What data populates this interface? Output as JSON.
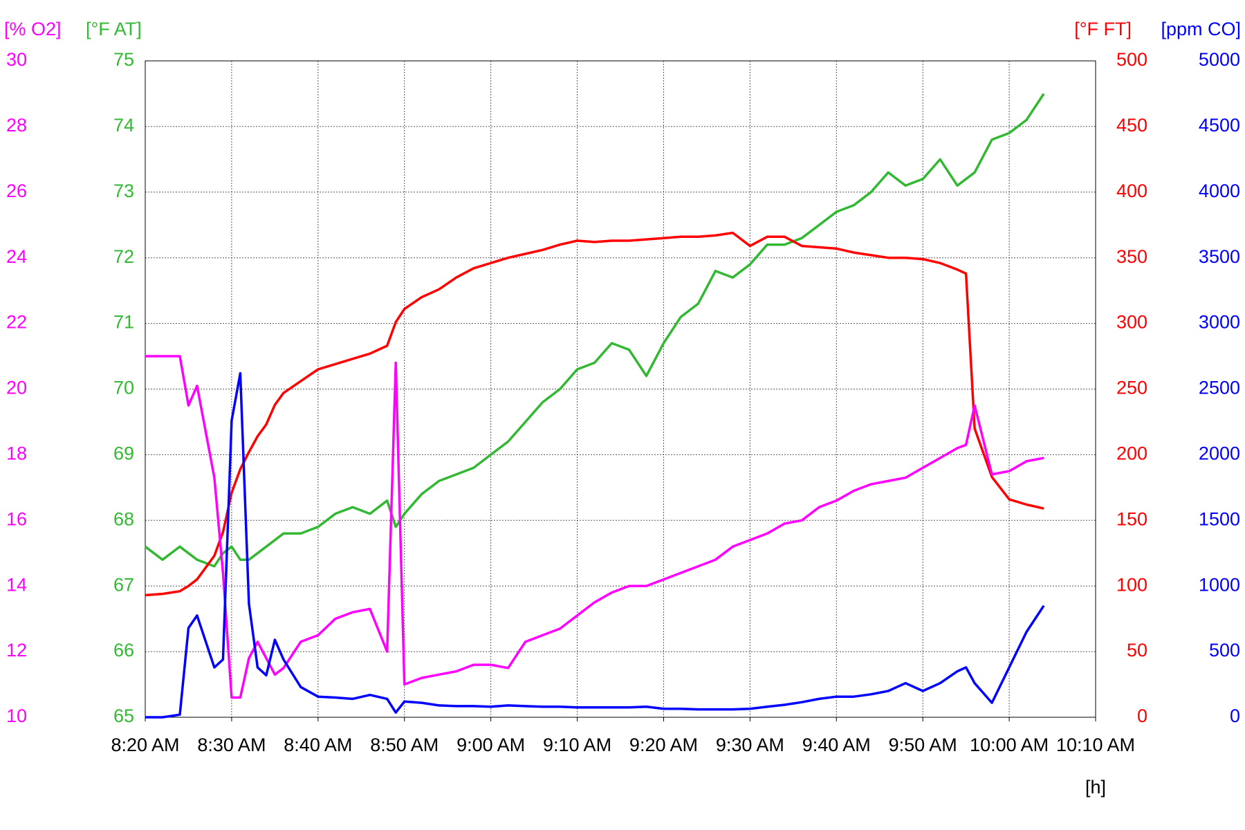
{
  "chart_data": {
    "type": "line",
    "x": [
      "8:20 AM",
      "8:22 AM",
      "8:24 AM",
      "8:25 AM",
      "8:26 AM",
      "8:28 AM",
      "8:29 AM",
      "8:30 AM",
      "8:31 AM",
      "8:32 AM",
      "8:33 AM",
      "8:34 AM",
      "8:35 AM",
      "8:36 AM",
      "8:38 AM",
      "8:40 AM",
      "8:42 AM",
      "8:44 AM",
      "8:46 AM",
      "8:48 AM",
      "8:49 AM",
      "8:50 AM",
      "8:52 AM",
      "8:54 AM",
      "8:56 AM",
      "8:58 AM",
      "9:00 AM",
      "9:02 AM",
      "9:04 AM",
      "9:06 AM",
      "9:08 AM",
      "9:10 AM",
      "9:12 AM",
      "9:14 AM",
      "9:16 AM",
      "9:18 AM",
      "9:20 AM",
      "9:22 AM",
      "9:24 AM",
      "9:26 AM",
      "9:28 AM",
      "9:30 AM",
      "9:32 AM",
      "9:34 AM",
      "9:36 AM",
      "9:38 AM",
      "9:40 AM",
      "9:42 AM",
      "9:44 AM",
      "9:46 AM",
      "9:48 AM",
      "9:50 AM",
      "9:52 AM",
      "9:54 AM",
      "9:55 AM",
      "9:56 AM",
      "9:58 AM",
      "10:00 AM",
      "10:02 AM",
      "10:04 AM"
    ],
    "xlim": [
      "8:20 AM",
      "10:10 AM"
    ],
    "xticks": [
      "8:20 AM",
      "8:30 AM",
      "8:40 AM",
      "8:50 AM",
      "9:00 AM",
      "9:10 AM",
      "9:20 AM",
      "9:30 AM",
      "9:40 AM",
      "9:50 AM",
      "10:00 AM",
      "10:10 AM"
    ],
    "x_label": "[h]",
    "grid": true,
    "axes": [
      {
        "label": "[% O2]",
        "color": "#ff00ff",
        "side": "left",
        "lim": [
          10,
          30
        ],
        "ticks": [
          10,
          12,
          14,
          16,
          18,
          20,
          22,
          24,
          26,
          28,
          30
        ]
      },
      {
        "label": "[°F AT]",
        "color": "#33b833",
        "side": "left",
        "lim": [
          65,
          75
        ],
        "ticks": [
          65,
          66,
          67,
          68,
          69,
          70,
          71,
          72,
          73,
          74,
          75
        ]
      },
      {
        "label": "[°F FT]",
        "color": "#ff0000",
        "side": "right",
        "lim": [
          0,
          500
        ],
        "ticks": [
          0,
          50,
          100,
          150,
          200,
          250,
          300,
          350,
          400,
          450,
          500
        ]
      },
      {
        "label": "[ppm CO]",
        "color": "#0000ff",
        "side": "right",
        "lim": [
          0,
          5000
        ],
        "ticks": [
          0,
          500,
          1000,
          1500,
          2000,
          2500,
          3000,
          3500,
          4000,
          4500,
          5000
        ]
      }
    ],
    "series": [
      {
        "axis": 1,
        "color": "#33b833",
        "values": [
          67.6,
          67.4,
          67.6,
          67.5,
          67.4,
          67.3,
          67.5,
          67.6,
          67.4,
          67.4,
          67.5,
          67.6,
          67.7,
          67.8,
          67.8,
          67.9,
          68.1,
          68.2,
          68.1,
          68.3,
          67.9,
          68.1,
          68.4,
          68.6,
          68.7,
          68.8,
          69.0,
          69.2,
          69.5,
          69.8,
          70.0,
          70.3,
          70.4,
          70.7,
          70.6,
          70.2,
          70.7,
          71.1,
          71.3,
          71.8,
          71.7,
          71.9,
          72.2,
          72.2,
          72.3,
          72.5,
          72.7,
          72.8,
          73.0,
          73.3,
          73.1,
          73.2,
          73.5,
          73.1,
          73.2,
          73.3,
          73.8,
          73.9,
          74.1,
          74.5
        ]
      },
      {
        "axis": 2,
        "color": "#ff0000",
        "values": [
          93,
          94,
          96,
          100,
          105,
          123,
          141,
          171,
          189,
          202,
          214,
          223,
          238,
          247,
          256,
          265,
          269,
          273,
          277,
          283,
          301,
          311,
          320,
          326,
          335,
          342,
          346,
          350,
          353,
          356,
          360,
          363,
          362,
          363,
          363,
          364,
          365,
          366,
          366,
          367,
          369,
          359,
          366,
          366,
          359,
          358,
          357,
          354,
          352,
          350,
          350,
          349,
          346,
          341,
          338,
          220,
          183,
          166,
          162,
          159
        ]
      },
      {
        "axis": 0,
        "color": "#ff00ff",
        "values": [
          21.0,
          21.0,
          21.0,
          19.5,
          20.1,
          17.3,
          14.4,
          10.6,
          10.6,
          11.8,
          12.3,
          11.8,
          11.3,
          11.5,
          12.3,
          12.5,
          13.0,
          13.2,
          13.3,
          12.0,
          20.8,
          11.0,
          11.2,
          11.3,
          11.4,
          11.6,
          11.6,
          11.5,
          12.3,
          12.5,
          12.7,
          13.1,
          13.5,
          13.8,
          14.0,
          14.0,
          14.2,
          14.4,
          14.6,
          14.8,
          15.2,
          15.4,
          15.6,
          15.9,
          16.0,
          16.4,
          16.6,
          16.9,
          17.1,
          17.2,
          17.3,
          17.6,
          17.9,
          18.2,
          18.3,
          19.5,
          17.4,
          17.5,
          17.8,
          17.9
        ]
      },
      {
        "axis": 3,
        "color": "#0000ff",
        "values": [
          0,
          0,
          20,
          680,
          775,
          380,
          440,
          2260,
          2620,
          865,
          380,
          320,
          590,
          440,
          230,
          157,
          150,
          140,
          170,
          140,
          36,
          120,
          110,
          90,
          85,
          85,
          80,
          90,
          85,
          80,
          80,
          75,
          75,
          75,
          75,
          80,
          65,
          65,
          60,
          60,
          60,
          65,
          80,
          95,
          115,
          140,
          157,
          157,
          175,
          200,
          260,
          200,
          260,
          350,
          380,
          260,
          110,
          380,
          650,
          850
        ]
      }
    ]
  }
}
